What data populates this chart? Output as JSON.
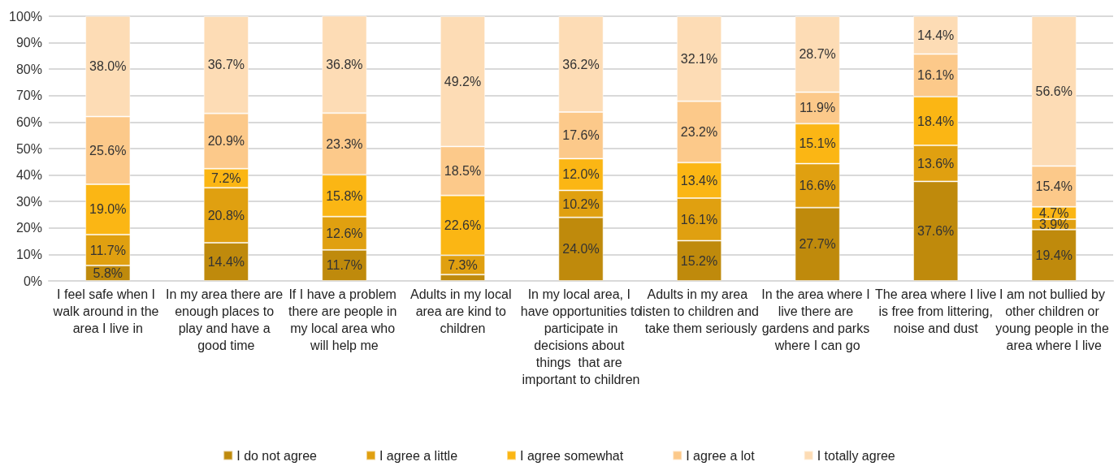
{
  "chart_data": {
    "type": "bar",
    "stacked": true,
    "categories": [
      "I feel safe when I walk around in the area I live in",
      "In my area there are enough places to play and have a good time",
      "If I have a problem there are people in my local area who will help me",
      "Adults in my local area are kind to children",
      "In my local area, I have opportunities to participate in decisions about things  that are important to children",
      "Adults in my area listen to children and take them seriously",
      "In the area where I live there are gardens and parks where I can go",
      "The area where I live is free from littering, noise and dust",
      "I am not bullied by other children or young people in the area where I live"
    ],
    "series": [
      {
        "name": "I do not agree",
        "color": "#bf8a0c",
        "values": [
          5.8,
          14.4,
          11.7,
          2.4,
          24.0,
          15.2,
          27.7,
          37.6,
          19.4
        ],
        "value_labels": [
          "5.8%",
          "14.4%",
          "11.7%",
          null,
          "24.0%",
          "15.2%",
          "27.7%",
          "37.6%",
          "19.4%"
        ]
      },
      {
        "name": "I agree a little",
        "color": "#e0a010",
        "values": [
          11.7,
          20.8,
          12.6,
          7.3,
          10.2,
          16.1,
          16.6,
          13.6,
          3.9
        ],
        "value_labels": [
          "11.7%",
          "20.8%",
          "12.6%",
          "7.3%",
          "10.2%",
          "16.1%",
          "16.6%",
          "13.6%",
          "3.9%"
        ]
      },
      {
        "name": "I agree somewhat",
        "color": "#fbb614",
        "values": [
          19.0,
          7.2,
          15.8,
          22.6,
          12.0,
          13.4,
          15.1,
          18.4,
          4.7
        ],
        "value_labels": [
          "19.0%",
          "7.2%",
          "15.8%",
          "22.6%",
          "12.0%",
          "13.4%",
          "15.1%",
          "18.4%",
          "4.7%"
        ]
      },
      {
        "name": "I agree a lot",
        "color": "#fcc98a",
        "values": [
          25.6,
          20.9,
          23.3,
          18.5,
          17.6,
          23.2,
          11.9,
          16.1,
          15.4
        ],
        "value_labels": [
          "25.6%",
          "20.9%",
          "23.3%",
          "18.5%",
          "17.6%",
          "23.2%",
          "11.9%",
          "16.1%",
          "15.4%"
        ]
      },
      {
        "name": "I totally agree",
        "color": "#fddcb5",
        "values": [
          38.0,
          36.7,
          36.8,
          49.2,
          36.2,
          32.1,
          28.7,
          14.4,
          56.6
        ],
        "value_labels": [
          "38.0%",
          "36.7%",
          "36.8%",
          "49.2%",
          "36.2%",
          "32.1%",
          "28.7%",
          "14.4%",
          "56.6%"
        ]
      }
    ],
    "ylim": [
      0,
      100
    ],
    "yticks": [
      {
        "value": 0,
        "label": "0%"
      },
      {
        "value": 10,
        "label": "10%"
      },
      {
        "value": 20,
        "label": "20%"
      },
      {
        "value": 30,
        "label": "30%"
      },
      {
        "value": 40,
        "label": "40%"
      },
      {
        "value": 50,
        "label": "50%"
      },
      {
        "value": 60,
        "label": "60%"
      },
      {
        "value": 70,
        "label": "70%"
      },
      {
        "value": 80,
        "label": "80%"
      },
      {
        "value": 90,
        "label": "90%"
      },
      {
        "value": 100,
        "label": "100%"
      }
    ],
    "grid": "y",
    "legend": "bottom"
  }
}
